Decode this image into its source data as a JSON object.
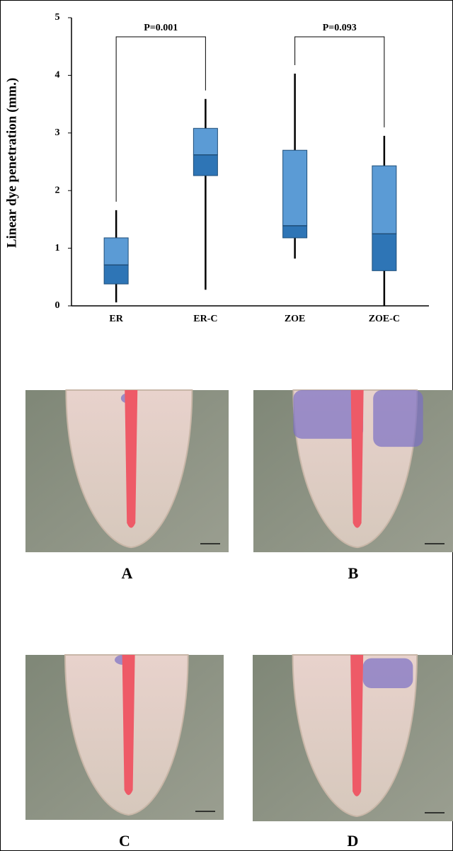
{
  "chart_data": {
    "type": "box",
    "y_label": "Linear dye penetration (mm.)",
    "categories": [
      "ER",
      "ER-C",
      "ZOE",
      "ZOE-C"
    ],
    "values": [
      [
        0.06,
        0.38,
        0.71,
        1.18,
        1.66
      ],
      [
        0.28,
        2.26,
        2.62,
        3.08,
        3.59
      ],
      [
        0.82,
        1.18,
        1.39,
        2.7,
        4.03
      ],
      [
        0,
        0.61,
        1.25,
        2.43,
        2.95
      ]
    ],
    "colors": [
      "#5b9bd5",
      "#2e75b6"
    ],
    "ylim": [
      0,
      5
    ],
    "yticks": [
      0,
      1,
      2,
      3,
      4,
      5
    ],
    "annotations": [
      "P=0.001",
      "P=0.093"
    ],
    "pairs": [
      [
        0,
        1
      ],
      [
        2,
        3
      ]
    ]
  },
  "panels": [
    "A",
    "B",
    "C",
    "D"
  ]
}
